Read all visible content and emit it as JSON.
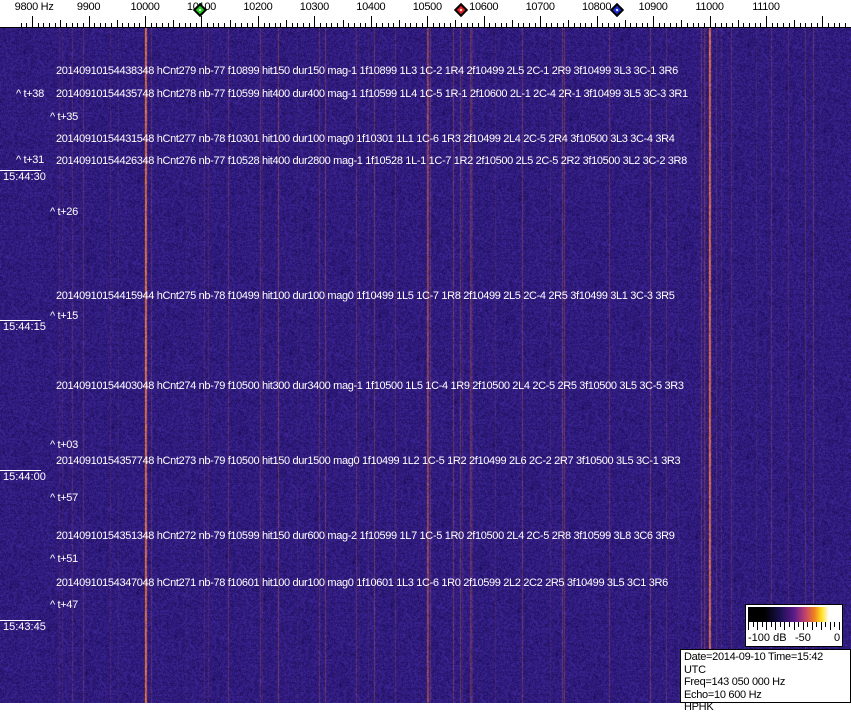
{
  "frequency_axis": {
    "labels": [
      {
        "text": "9800 Hz",
        "freq": 9800
      },
      {
        "text": "9900",
        "freq": 9900
      },
      {
        "text": "10000",
        "freq": 10000
      },
      {
        "text": "10100",
        "freq": 10100
      },
      {
        "text": "10200",
        "freq": 10200
      },
      {
        "text": "10300",
        "freq": 10300
      },
      {
        "text": "10400",
        "freq": 10400
      },
      {
        "text": "10500",
        "freq": 10500
      },
      {
        "text": "10600",
        "freq": 10600
      },
      {
        "text": "10700",
        "freq": 10700
      },
      {
        "text": "10800",
        "freq": 10800
      },
      {
        "text": "10900",
        "freq": 10900
      },
      {
        "text": "11000",
        "freq": 11000
      },
      {
        "text": "11100",
        "freq": 11100
      }
    ],
    "markers": [
      {
        "name": "green",
        "color": "#22cc22",
        "freq": 10098
      },
      {
        "name": "red",
        "color": "#dd2222",
        "freq": 10560
      },
      {
        "name": "blue",
        "color": "#1a2acc",
        "freq": 10837
      }
    ]
  },
  "colors": {
    "background": "#2a1c78",
    "carrier": "#e07a3a",
    "text": "#ffffff"
  },
  "detections": [
    "20140910154438348 hCnt279 nb-77 f10899 hit150 dur150 mag-1 1f10899 1L3 1C-2 1R4 2f10499 2L5 2C-1 2R9 3f10499 3L3 3C-1 3R6",
    "20140910154435748 hCnt278 nb-77 f10599 hit400 dur400 mag-1 1f10599 1L4 1C-5 1R-1 2f10600 2L-1 2C-4 2R-1 3f10499 3L5 3C-3 3R1",
    "20140910154431548 hCnt277 nb-78 f10301 hit100 dur100 mag0 1f10301 1L1 1C-6 1R3 2f10499 2L4 2C-5 2R4 3f10500 3L3 3C-4 3R4",
    "20140910154426348 hCnt276 nb-77 f10528 hit400 dur2800 mag-1 1f10528 1L-1 1C-7 1R2 2f10500 2L5 2C-5 2R2 3f10500 3L2 3C-2 3R8",
    "20140910154415944 hCnt275 nb-78 f10499 hit100 dur100 mag0 1f10499 1L5 1C-7 1R8 2f10499 2L5 2C-4 2R5 3f10499 3L1 3C-3 3R5",
    "20140910154403048 hCnt274 nb-79 f10500 hit300 dur3400 mag-1 1f10500 1L5 1C-4 1R9 2f10500 2L4 2C-5 2R5 3f10500 3L5 3C-5 3R3",
    "20140910154357748 hCnt273 nb-79 f10500 hit150 dur1500 mag0 1f10499 1L2 1C-5 1R2 2f10499 2L6 2C-2 2R7 3f10500 3L5 3C-1 3R3",
    "20140910154351348 hCnt272 nb-79 f10599 hit150 dur600 mag-2 1f10599 1L7 1C-5 1R0 2f10500 2L4 2C-5 2R8 3f10599 3L8 3C6 3R9",
    "20140910154347048 hCnt271 nb-78 f10601 hit100 dur100 mag0 1f10601 1L3 1C-6 1R0 2f10599 2L2 2C2 2R5 3f10499 3L5 3C1 3R6"
  ],
  "offsets": [
    "^ t+38",
    "^ t+35",
    "^ t+31",
    "^ t+26",
    "^ t+15",
    "^ t+03",
    "^ t+57",
    "^ t+51",
    "^ t+47"
  ],
  "time_labels": [
    "15:44:30",
    "15:44:15",
    "15:44:00",
    "15:43:45"
  ],
  "colorbar": {
    "labels": [
      "-100 dB",
      "-50",
      "0"
    ]
  },
  "info": {
    "line1": "Date=2014-09-10 Time=15:42 UTC",
    "line2": "Freq=143 050 000 Hz",
    "line3": "Echo=10 600 Hz",
    "line4": "HPHK"
  }
}
